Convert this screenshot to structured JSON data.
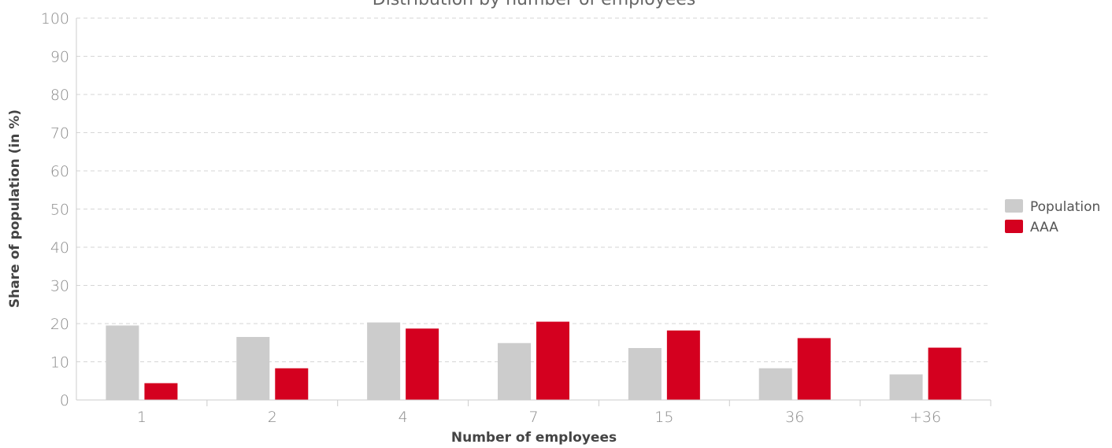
{
  "chart_data": {
    "type": "bar",
    "title": "Distribution by number of employees",
    "xlabel": "Number of employees",
    "ylabel": "Share of population (in %)",
    "categories": [
      "1",
      "2",
      "4",
      "7",
      "15",
      "36",
      "+36"
    ],
    "ylim": [
      0,
      100
    ],
    "yticks": [
      0,
      10,
      20,
      30,
      40,
      50,
      60,
      70,
      80,
      90,
      100
    ],
    "grid": true,
    "legend_position": "right",
    "series": [
      {
        "name": "Population",
        "color": "#cccccc",
        "values": [
          19.5,
          16.5,
          20.3,
          14.9,
          13.6,
          8.3,
          6.7
        ]
      },
      {
        "name": "AAA",
        "color": "#d4001f",
        "values": [
          4.4,
          8.3,
          18.7,
          20.5,
          18.2,
          16.2,
          13.7
        ]
      }
    ]
  }
}
